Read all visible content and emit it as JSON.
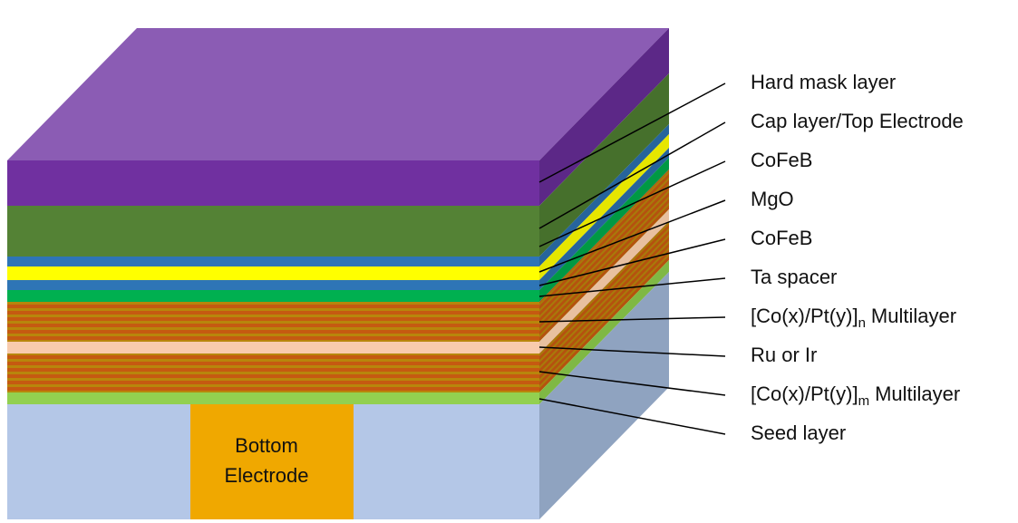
{
  "labels": [
    {
      "text": "Hard mask layer"
    },
    {
      "text": "Cap layer/Top Electrode"
    },
    {
      "text": "CoFeB"
    },
    {
      "text": "MgO"
    },
    {
      "text": "CoFeB"
    },
    {
      "text": "Ta spacer"
    },
    {
      "pre": "[Co(x)/Pt(y)]",
      "sub": "n",
      "post": "Multilayer"
    },
    {
      "text": "Ru or Ir"
    },
    {
      "pre": "[Co(x)/Pt(y)]",
      "sub": "m",
      "post": "Multilayer"
    },
    {
      "text": "Seed layer"
    }
  ],
  "bottom_electrode": {
    "lines": [
      "Bottom",
      "Electrode"
    ]
  }
}
